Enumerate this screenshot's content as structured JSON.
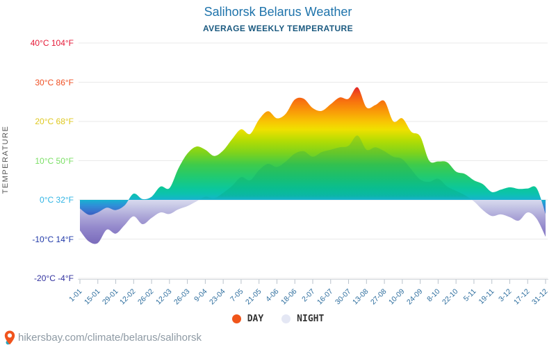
{
  "header": {
    "title": "Salihorsk Belarus Weather",
    "subtitle": "AVERAGE WEEKLY TEMPERATURE"
  },
  "y_axis": {
    "title": "TEMPERATURE",
    "ticks": [
      {
        "label": "40°C 104°F",
        "t": 40,
        "color": "#e51937"
      },
      {
        "label": "30°C 86°F",
        "t": 30,
        "color": "#ef4f23"
      },
      {
        "label": "20°C 68°F",
        "t": 20,
        "color": "#dfc81f"
      },
      {
        "label": "10°C 50°F",
        "t": 10,
        "color": "#79df63"
      },
      {
        "label": "0°C 32°F",
        "t": 0,
        "color": "#2fb4e4"
      },
      {
        "label": "-10°C 14°F",
        "t": -10,
        "color": "#1f38a8"
      },
      {
        "label": "-20°C -4°F",
        "t": -20,
        "color": "#30309e"
      }
    ]
  },
  "x_axis": {
    "labels": [
      "1-01",
      "15-01",
      "29-01",
      "12-02",
      "26-02",
      "12-03",
      "26-03",
      "9-04",
      "23-04",
      "7-05",
      "21-05",
      "4-06",
      "18-06",
      "2-07",
      "16-07",
      "30-07",
      "13-08",
      "27-08",
      "10-09",
      "24-09",
      "8-10",
      "22-10",
      "5-11",
      "19-11",
      "3-12",
      "17-12",
      "31-12"
    ]
  },
  "legend": {
    "day": {
      "label": "DAY",
      "color": "#f0551a"
    },
    "night": {
      "label": "NIGHT",
      "color": "#e4e7f4"
    }
  },
  "footer": {
    "url": "hikersbay.com/climate/belarus/salihorsk",
    "pin_color": "#f0541e",
    "pin_dot_color": "#2aa7c0"
  },
  "chart_data": {
    "type": "area",
    "title": "Salihorsk Belarus Weather",
    "subtitle": "AVERAGE WEEKLY TEMPERATURE",
    "unit": "°C",
    "ylim": [
      -20,
      40
    ],
    "y_ticks_c": [
      40,
      30,
      20,
      10,
      0,
      -10,
      -20
    ],
    "baseline": 0,
    "grid": true,
    "legend_position": "bottom",
    "x_tick_labels": [
      "1-01",
      "15-01",
      "29-01",
      "12-02",
      "26-02",
      "12-03",
      "26-03",
      "9-04",
      "23-04",
      "7-05",
      "21-05",
      "4-06",
      "18-06",
      "2-07",
      "16-07",
      "30-07",
      "13-08",
      "27-08",
      "10-09",
      "24-09",
      "8-10",
      "22-10",
      "5-11",
      "19-11",
      "3-12",
      "17-12",
      "31-12"
    ],
    "weeks": 53,
    "series": [
      {
        "name": "DAY",
        "values": [
          -2.2,
          -3.8,
          -3.2,
          -2.0,
          -2.6,
          -1.4,
          1.6,
          0.2,
          0.8,
          3.4,
          3.0,
          8.0,
          11.8,
          13.6,
          12.8,
          11.2,
          12.6,
          15.5,
          18.0,
          16.8,
          20.5,
          22.6,
          20.8,
          22.0,
          25.6,
          25.8,
          23.4,
          22.7,
          24.4,
          26.1,
          25.8,
          28.7,
          23.6,
          24.2,
          25.2,
          20.0,
          20.8,
          17.4,
          16.2,
          10.0,
          9.8,
          9.6,
          7.2,
          6.6,
          5.0,
          4.0,
          2.0,
          2.6,
          3.2,
          2.8,
          2.9,
          3.0,
          -3.6
        ]
      },
      {
        "name": "NIGHT",
        "values": [
          -7.8,
          -10.6,
          -11.0,
          -7.6,
          -8.6,
          -6.4,
          -4.2,
          -6.2,
          -4.6,
          -3.2,
          -3.6,
          -2.4,
          -1.6,
          -0.4,
          0.8,
          0.4,
          1.8,
          3.6,
          5.8,
          5.0,
          7.6,
          9.2,
          8.4,
          9.8,
          11.8,
          12.4,
          11.0,
          12.2,
          12.8,
          13.4,
          13.8,
          16.4,
          12.8,
          13.4,
          12.4,
          11.0,
          10.4,
          7.8,
          5.2,
          4.6,
          5.4,
          3.4,
          2.3,
          1.2,
          -0.4,
          -2.6,
          -4.1,
          -3.7,
          -4.4,
          -5.3,
          -3.2,
          -4.8,
          -9.4
        ]
      }
    ],
    "day_gradient": [
      [
        30,
        "#d81434"
      ],
      [
        28.5,
        "#e42c26"
      ],
      [
        27,
        "#f25317"
      ],
      [
        25,
        "#f8750e"
      ],
      [
        22.5,
        "#f99c08"
      ],
      [
        20,
        "#f8c404"
      ],
      [
        18,
        "#f0e000"
      ],
      [
        15,
        "#b2dc04"
      ],
      [
        12,
        "#7ed31c"
      ],
      [
        9,
        "#3fcb4a"
      ],
      [
        6,
        "#22ca70"
      ],
      [
        3,
        "#0cc79a"
      ],
      [
        1.5,
        "#0cc2ae"
      ],
      [
        0,
        "#18b2d0"
      ],
      [
        -1.5,
        "#2f8ed8"
      ],
      [
        -3,
        "#3a70cc"
      ],
      [
        -5,
        "#2c47ad"
      ],
      [
        -8,
        "#212e8e"
      ],
      [
        -13,
        "#1a2478"
      ]
    ],
    "night_gradient": [
      [
        20,
        "#90d8bc"
      ],
      [
        1,
        "#dfe2f0"
      ],
      [
        0,
        "#d8daee"
      ],
      [
        -2,
        "#c3c3e4"
      ],
      [
        -4,
        "#afaad9"
      ],
      [
        -7,
        "#9489cc"
      ],
      [
        -10,
        "#8173c0"
      ],
      [
        -13,
        "#7464b4"
      ]
    ],
    "tint_gradient": [
      [
        20,
        "#009464",
        0.2
      ],
      [
        1,
        "#009464",
        0.2
      ],
      [
        0,
        "#009464",
        0
      ],
      [
        -13,
        "#009464",
        0
      ]
    ],
    "grid_color": "#e9e9e9",
    "axis_color": "#d3d8dd",
    "tick_color": "#b9c2cb"
  }
}
